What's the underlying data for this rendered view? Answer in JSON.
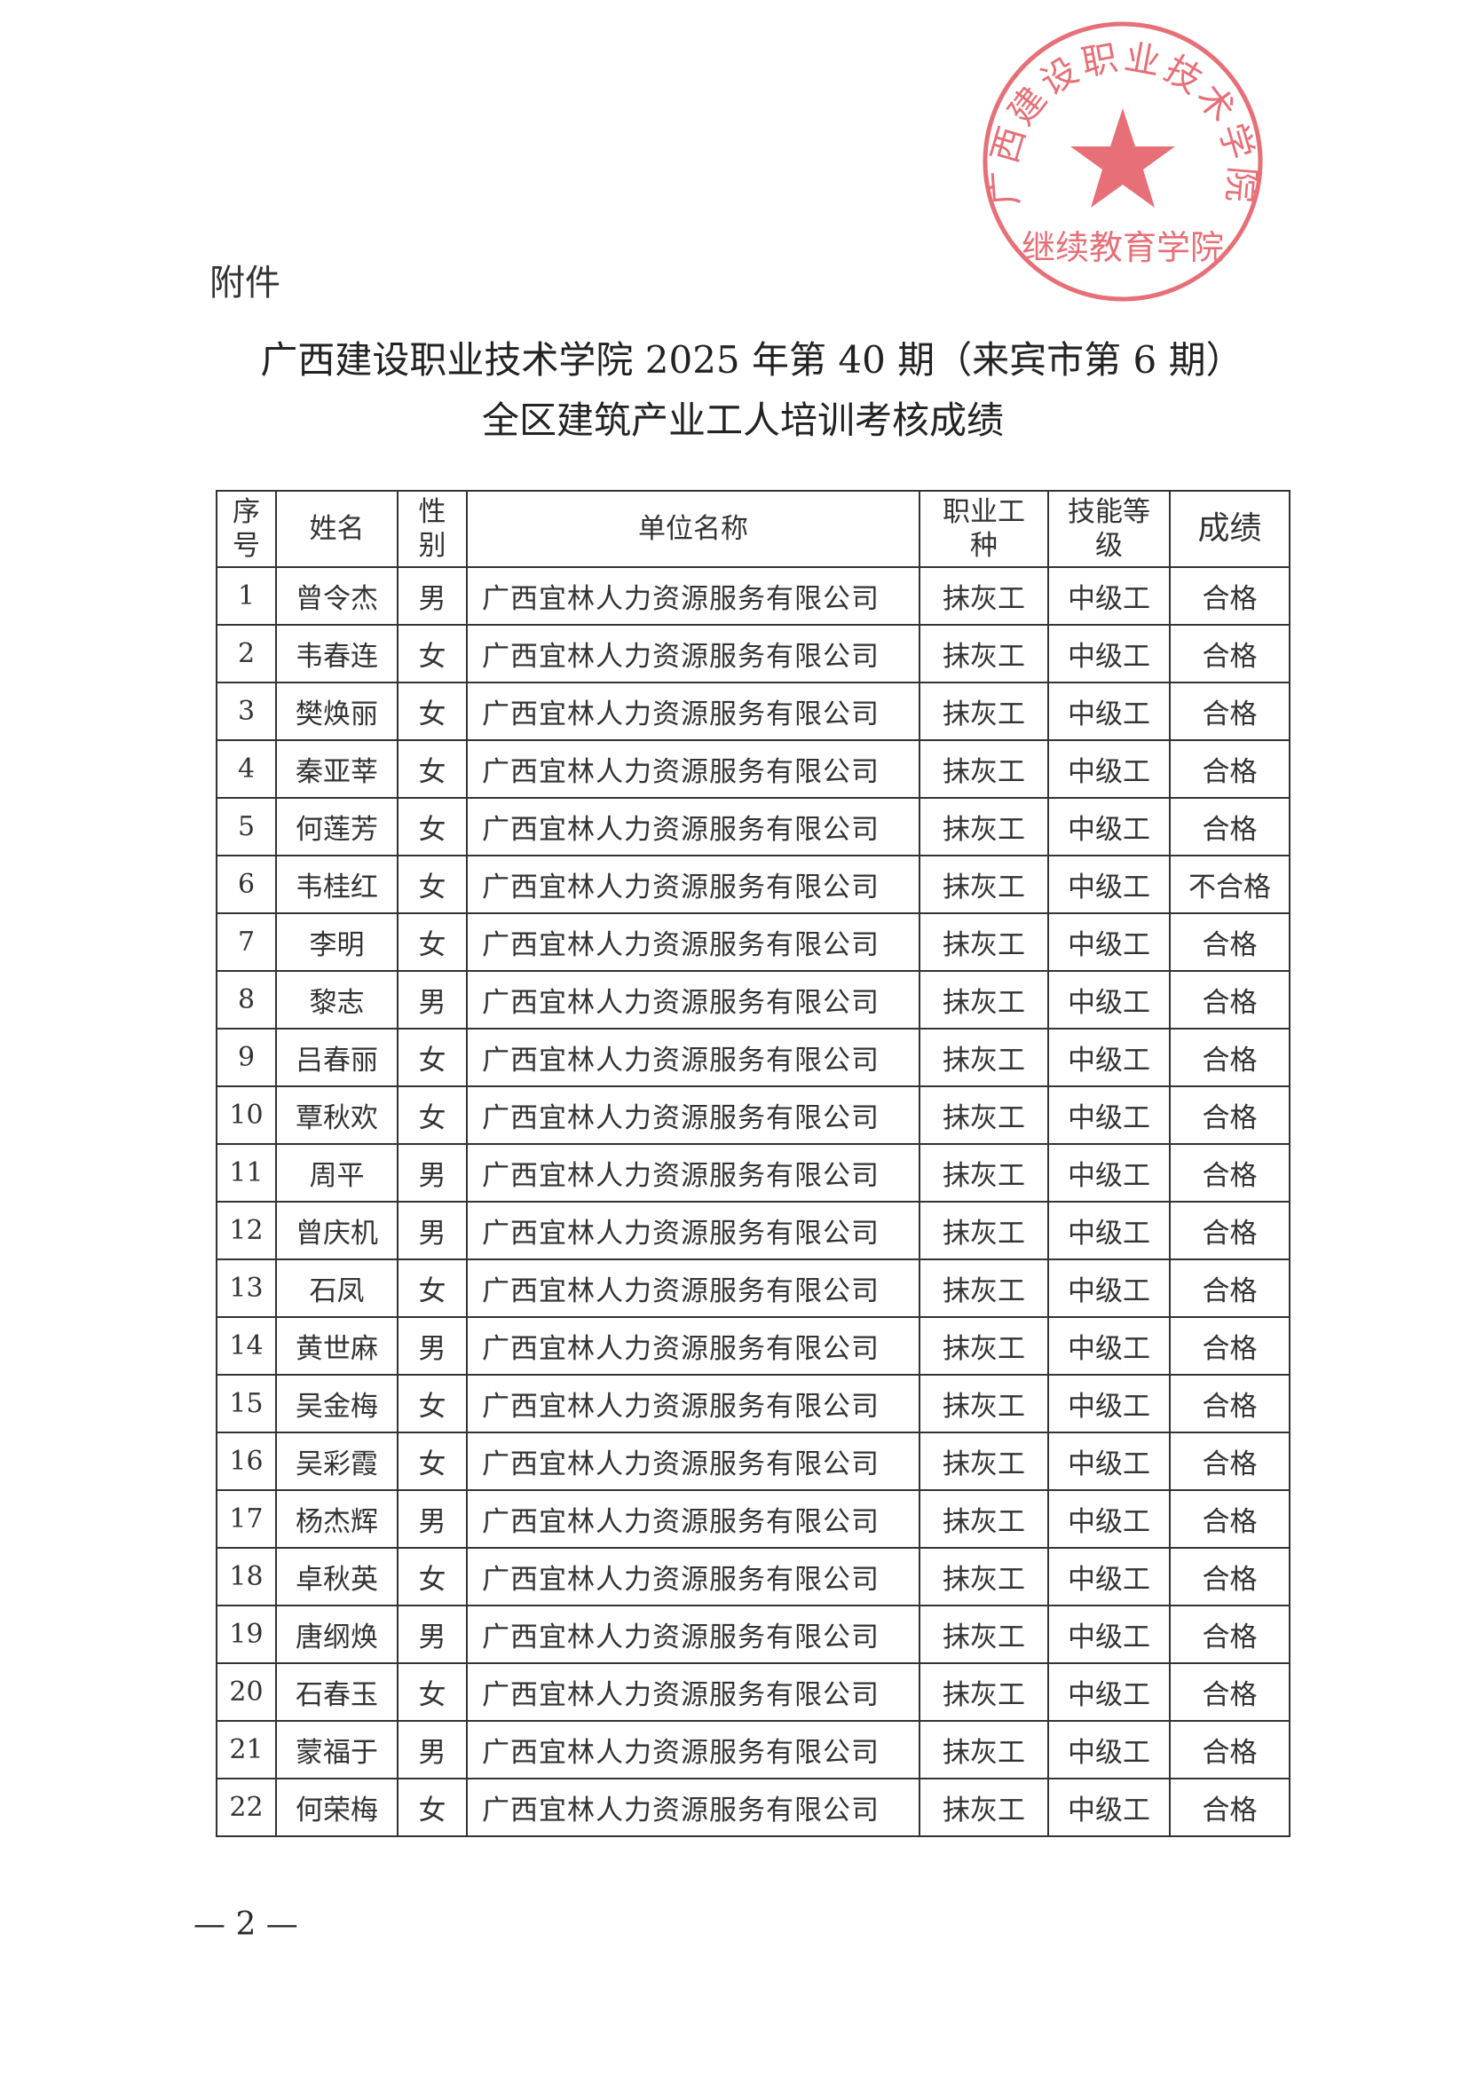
{
  "attachment_label": "附件",
  "title_line1": "广西建设职业技术学院 2025 年第 40 期（来宾市第 6 期）",
  "title_line2": "全区建筑产业工人培训考核成绩",
  "stamp": {
    "outer_text": "广西建设职业技术学院",
    "inner_text": "继续教育学院",
    "color": "#e0404a"
  },
  "table": {
    "headers": [
      "序号",
      "姓名",
      "性别",
      "单位名称",
      "职业工种",
      "技能等级",
      "成绩"
    ],
    "rows": [
      [
        "1",
        "曾令杰",
        "男",
        "广西宜林人力资源服务有限公司",
        "抹灰工",
        "中级工",
        "合格"
      ],
      [
        "2",
        "韦春连",
        "女",
        "广西宜林人力资源服务有限公司",
        "抹灰工",
        "中级工",
        "合格"
      ],
      [
        "3",
        "樊焕丽",
        "女",
        "广西宜林人力资源服务有限公司",
        "抹灰工",
        "中级工",
        "合格"
      ],
      [
        "4",
        "秦亚莘",
        "女",
        "广西宜林人力资源服务有限公司",
        "抹灰工",
        "中级工",
        "合格"
      ],
      [
        "5",
        "何莲芳",
        "女",
        "广西宜林人力资源服务有限公司",
        "抹灰工",
        "中级工",
        "合格"
      ],
      [
        "6",
        "韦桂红",
        "女",
        "广西宜林人力资源服务有限公司",
        "抹灰工",
        "中级工",
        "不合格"
      ],
      [
        "7",
        "李明",
        "女",
        "广西宜林人力资源服务有限公司",
        "抹灰工",
        "中级工",
        "合格"
      ],
      [
        "8",
        "黎志",
        "男",
        "广西宜林人力资源服务有限公司",
        "抹灰工",
        "中级工",
        "合格"
      ],
      [
        "9",
        "吕春丽",
        "女",
        "广西宜林人力资源服务有限公司",
        "抹灰工",
        "中级工",
        "合格"
      ],
      [
        "10",
        "覃秋欢",
        "女",
        "广西宜林人力资源服务有限公司",
        "抹灰工",
        "中级工",
        "合格"
      ],
      [
        "11",
        "周平",
        "男",
        "广西宜林人力资源服务有限公司",
        "抹灰工",
        "中级工",
        "合格"
      ],
      [
        "12",
        "曾庆机",
        "男",
        "广西宜林人力资源服务有限公司",
        "抹灰工",
        "中级工",
        "合格"
      ],
      [
        "13",
        "石凤",
        "女",
        "广西宜林人力资源服务有限公司",
        "抹灰工",
        "中级工",
        "合格"
      ],
      [
        "14",
        "黄世麻",
        "男",
        "广西宜林人力资源服务有限公司",
        "抹灰工",
        "中级工",
        "合格"
      ],
      [
        "15",
        "吴金梅",
        "女",
        "广西宜林人力资源服务有限公司",
        "抹灰工",
        "中级工",
        "合格"
      ],
      [
        "16",
        "吴彩霞",
        "女",
        "广西宜林人力资源服务有限公司",
        "抹灰工",
        "中级工",
        "合格"
      ],
      [
        "17",
        "杨杰辉",
        "男",
        "广西宜林人力资源服务有限公司",
        "抹灰工",
        "中级工",
        "合格"
      ],
      [
        "18",
        "卓秋英",
        "女",
        "广西宜林人力资源服务有限公司",
        "抹灰工",
        "中级工",
        "合格"
      ],
      [
        "19",
        "唐纲焕",
        "男",
        "广西宜林人力资源服务有限公司",
        "抹灰工",
        "中级工",
        "合格"
      ],
      [
        "20",
        "石春玉",
        "女",
        "广西宜林人力资源服务有限公司",
        "抹灰工",
        "中级工",
        "合格"
      ],
      [
        "21",
        "蒙福于",
        "男",
        "广西宜林人力资源服务有限公司",
        "抹灰工",
        "中级工",
        "合格"
      ],
      [
        "22",
        "何荣梅",
        "女",
        "广西宜林人力资源服务有限公司",
        "抹灰工",
        "中级工",
        "合格"
      ]
    ]
  },
  "page_number": "— 2 —"
}
